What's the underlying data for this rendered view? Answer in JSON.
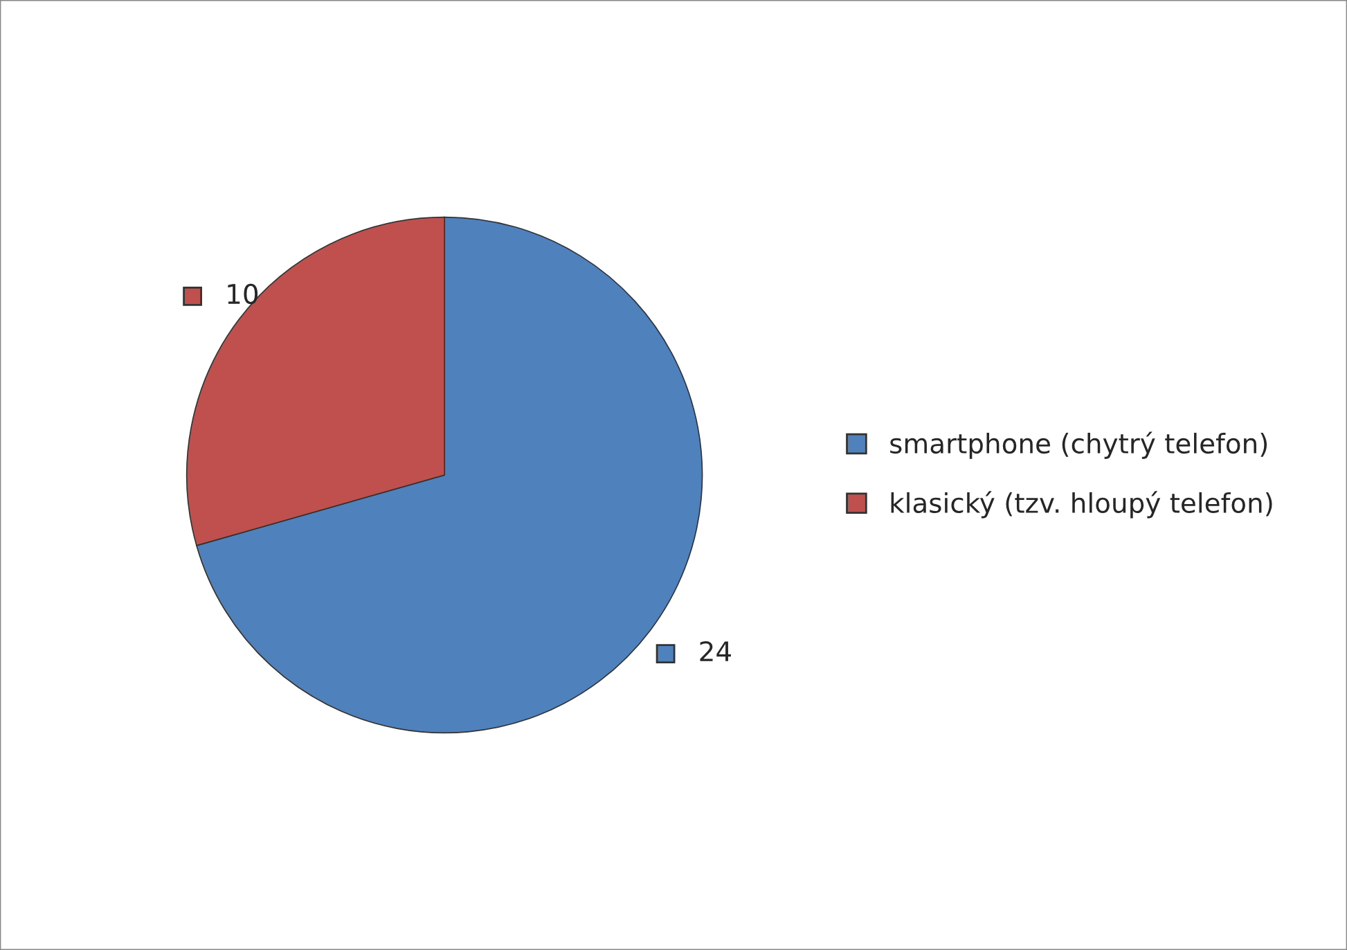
{
  "chart_data": {
    "type": "pie",
    "categories": [
      "smartphone (chytrý telefon)",
      "klasický (tzv. hloupý telefon)"
    ],
    "values": [
      24,
      10
    ],
    "colors": [
      "#4f81bd",
      "#c0504d"
    ],
    "data_labels": true,
    "legend": "right"
  }
}
